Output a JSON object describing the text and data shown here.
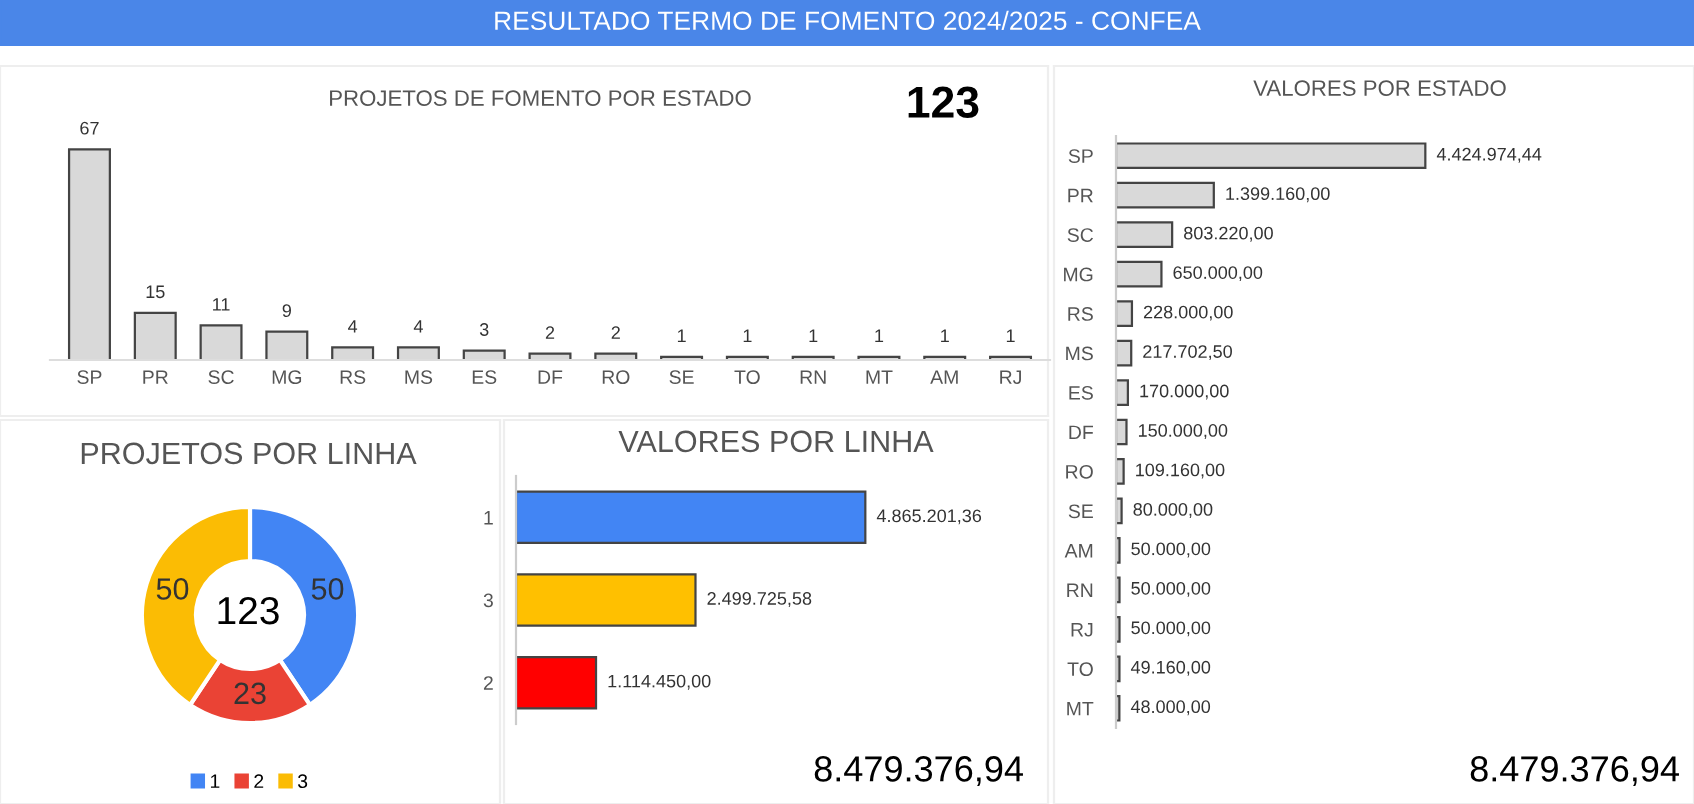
{
  "chart_data": [
    {
      "type": "other",
      "title": "RESULTADO TERMO DE FOMENTO 2024/2025 - CONFEA"
    },
    {
      "type": "bar",
      "title": "PROJETOS DE FOMENTO POR ESTADO",
      "annotations": [
        "123"
      ],
      "categories": [
        "SP",
        "PR",
        "SC",
        "MG",
        "RS",
        "MS",
        "ES",
        "DF",
        "RO",
        "SE",
        "TO",
        "RN",
        "MT",
        "AM",
        "RJ"
      ],
      "values": [
        67,
        15,
        11,
        9,
        4,
        4,
        3,
        2,
        2,
        1,
        1,
        1,
        1,
        1,
        1
      ],
      "color": "#d9d9d9",
      "data_labels": true,
      "grid": false,
      "legend": false
    },
    {
      "type": "bar",
      "orientation": "horizontal",
      "title": "VALORES POR ESTADO",
      "annotations": [
        "8.479.376,94"
      ],
      "categories": [
        "SP",
        "PR",
        "SC",
        "MG",
        "RS",
        "MS",
        "ES",
        "DF",
        "RO",
        "SE",
        "AM",
        "RN",
        "RJ",
        "TO",
        "MT"
      ],
      "values": [
        4424974.44,
        1399160.0,
        803220.0,
        650000.0,
        228000.0,
        217702.5,
        170000.0,
        150000.0,
        109160.0,
        80000.0,
        50000.0,
        50000.0,
        50000.0,
        49160.0,
        48000.0
      ],
      "value_labels": [
        "4.424.974,44",
        "1.399.160,00",
        "803.220,00",
        "650.000,00",
        "228.000,00",
        "217.702,50",
        "170.000,00",
        "150.000,00",
        "109.160,00",
        "80.000,00",
        "50.000,00",
        "50.000,00",
        "50.000,00",
        "49.160,00",
        "48.000,00"
      ],
      "color": "#d9d9d9",
      "grid": false,
      "legend": false
    },
    {
      "type": "donut",
      "title": "PROJETOS POR LINHA",
      "annotations": [
        "123"
      ],
      "categories": [
        "1",
        "2",
        "3"
      ],
      "values": [
        50,
        23,
        50
      ],
      "colors": [
        "#4285f4",
        "#ea4335",
        "#fbbc04"
      ],
      "data_labels": true,
      "legend": "bottom"
    },
    {
      "type": "bar",
      "orientation": "horizontal",
      "title": "VALORES POR LINHA",
      "annotations": [
        "8.479.376,94"
      ],
      "categories": [
        "1",
        "3",
        "2"
      ],
      "values": [
        4865201.36,
        2499725.58,
        1114450.0
      ],
      "value_labels": [
        "4.865.201,36",
        "2.499.725,58",
        "1.114.450,00"
      ],
      "colors": [
        "#4285f4",
        "#ffc000",
        "#ff0000"
      ],
      "grid": false,
      "legend": false
    }
  ]
}
